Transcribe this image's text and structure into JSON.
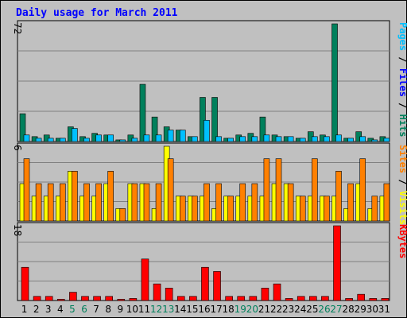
{
  "chart_data": {
    "type": "bar",
    "title": "Daily usage for March 2011",
    "categories": [
      "1",
      "2",
      "3",
      "4",
      "5",
      "6",
      "7",
      "8",
      "9",
      "10",
      "11",
      "12",
      "13",
      "14",
      "15",
      "16",
      "17",
      "18",
      "19",
      "20",
      "21",
      "22",
      "23",
      "24",
      "25",
      "26",
      "27",
      "28",
      "29",
      "30",
      "31"
    ],
    "weekend_days": [
      "5",
      "6",
      "12",
      "13",
      "19",
      "20",
      "26",
      "27"
    ],
    "panels": [
      {
        "name": "hits-files-pages",
        "ymax_label": "72",
        "ymax": 72,
        "side_labels": [
          {
            "text": "Hits",
            "color": "#00805c"
          },
          {
            "text": " / ",
            "color": "#000000"
          },
          {
            "text": "Files",
            "color": "#0000ff"
          },
          {
            "text": " / ",
            "color": "#000000"
          },
          {
            "text": "Pages",
            "color": "#00c0ff"
          }
        ],
        "series": [
          {
            "name": "Hits",
            "color": "#00805c",
            "values": [
              17,
              3,
              4,
              2,
              9,
              3,
              5,
              4,
              1,
              4,
              35,
              15,
              9,
              7,
              3,
              27,
              27,
              2,
              4,
              5,
              15,
              4,
              3,
              2,
              6,
              4,
              72,
              2,
              6,
              2,
              3
            ]
          },
          {
            "name": "Files",
            "color": "#00c0ff",
            "values": [
              4,
              2,
              2,
              2,
              8,
              2,
              4,
              4,
              1,
              2,
              4,
              4,
              7,
              7,
              3,
              13,
              3,
              2,
              3,
              3,
              4,
              3,
              3,
              2,
              3,
              3,
              4,
              2,
              3,
              1,
              2
            ]
          },
          {
            "name": "Pages",
            "color": "#00c0ff",
            "values": [
              0,
              0,
              0,
              0,
              0,
              0,
              0,
              0,
              0,
              0,
              0,
              0,
              0,
              0,
              0,
              0,
              0,
              0,
              0,
              0,
              0,
              0,
              0,
              0,
              0,
              0,
              0,
              0,
              0,
              0,
              0
            ]
          }
        ]
      },
      {
        "name": "visits-sites",
        "ymax_label": "6",
        "ymax": 6,
        "side_labels": [
          {
            "text": "Visits",
            "color": "#ffff00"
          },
          {
            "text": " / ",
            "color": "#000000"
          },
          {
            "text": "Sites",
            "color": "#ff8000"
          }
        ],
        "series": [
          {
            "name": "Visits",
            "color": "#ffff00",
            "values": [
              3,
              2,
              2,
              2,
              4,
              2,
              2,
              3,
              1,
              3,
              3,
              1,
              6,
              2,
              2,
              2,
              1,
              2,
              2,
              2,
              2,
              3,
              3,
              2,
              2,
              2,
              2,
              1,
              3,
              1,
              2
            ]
          },
          {
            "name": "Sites",
            "color": "#ff8000",
            "values": [
              5,
              3,
              3,
              3,
              4,
              3,
              3,
              4,
              1,
              3,
              3,
              3,
              5,
              2,
              2,
              3,
              3,
              2,
              3,
              3,
              5,
              5,
              3,
              2,
              5,
              2,
              4,
              3,
              5,
              2,
              3
            ]
          }
        ]
      },
      {
        "name": "kbytes",
        "ymax_label": "18",
        "ymax": 18,
        "side_labels": [
          {
            "text": "KBytes",
            "color": "#ff0000"
          }
        ],
        "series": [
          {
            "name": "KBytes",
            "color": "#ff0000",
            "values": [
              8,
              1,
              1,
              0.3,
              2,
              1,
              1,
              1,
              0.3,
              0.5,
              10,
              4,
              3,
              1,
              1,
              8,
              7,
              1,
              1,
              1,
              3,
              4,
              0.5,
              1,
              1,
              1,
              18,
              0.5,
              1.5,
              0.5,
              0.5
            ]
          }
        ]
      }
    ]
  }
}
